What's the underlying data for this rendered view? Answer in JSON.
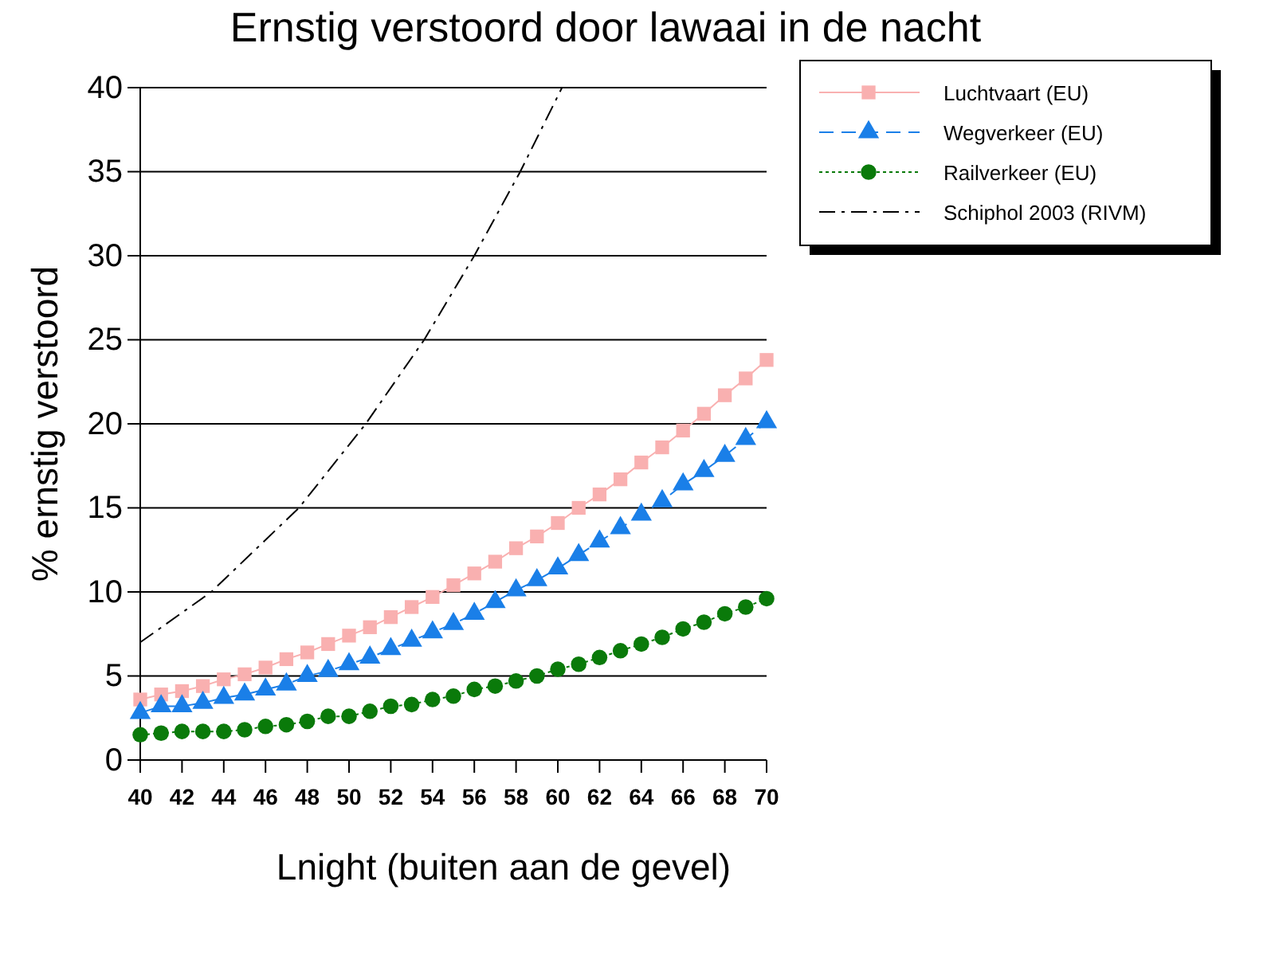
{
  "chart_data": {
    "type": "line",
    "title": "Ernstig verstoord door lawaai in de nacht",
    "xlabel": "Lnight (buiten aan de gevel)",
    "ylabel": "% ernstig verstoord",
    "x": [
      40,
      41,
      42,
      43,
      44,
      45,
      46,
      47,
      48,
      49,
      50,
      51,
      52,
      53,
      54,
      55,
      56,
      57,
      58,
      59,
      60,
      61,
      62,
      63,
      64,
      65,
      66,
      67,
      68,
      69,
      70
    ],
    "series": [
      {
        "name": "Luchtvaart (EU)",
        "color": "#f9b0b0",
        "marker": "square",
        "line_style": "solid",
        "values": [
          3.6,
          3.9,
          4.1,
          4.4,
          4.8,
          5.1,
          5.5,
          6.0,
          6.4,
          6.9,
          7.4,
          7.9,
          8.5,
          9.1,
          9.7,
          10.4,
          11.1,
          11.8,
          12.6,
          13.3,
          14.1,
          15.0,
          15.8,
          16.7,
          17.7,
          18.6,
          19.6,
          20.6,
          21.7,
          22.7,
          23.8
        ]
      },
      {
        "name": "Wegverkeer (EU)",
        "color": "#1a7fe8",
        "marker": "triangle",
        "line_style": "dashed",
        "values": [
          2.8,
          3.2,
          3.2,
          3.4,
          3.7,
          3.9,
          4.2,
          4.5,
          5.0,
          5.3,
          5.7,
          6.1,
          6.6,
          7.1,
          7.6,
          8.1,
          8.7,
          9.4,
          10.1,
          10.7,
          11.4,
          12.2,
          13.0,
          13.8,
          14.6,
          15.4,
          16.4,
          17.2,
          18.1,
          19.1,
          20.1
        ]
      },
      {
        "name": "Railverkeer (EU)",
        "color": "#0a7a0a",
        "marker": "circle",
        "line_style": "dotted",
        "values": [
          1.5,
          1.6,
          1.7,
          1.7,
          1.7,
          1.8,
          2.0,
          2.1,
          2.3,
          2.6,
          2.6,
          2.9,
          3.2,
          3.3,
          3.6,
          3.8,
          4.2,
          4.4,
          4.7,
          5.0,
          5.4,
          5.7,
          6.1,
          6.5,
          6.9,
          7.3,
          7.8,
          8.2,
          8.7,
          9.1,
          9.6
        ]
      },
      {
        "name": "Schiphol 2003 (RIVM)",
        "color": "#000000",
        "marker": "none",
        "line_style": "dashdot",
        "x": [
          40,
          43.4,
          47.6,
          50.8,
          53.6,
          56,
          58.2,
          60.2
        ],
        "values": [
          7,
          10,
          15,
          20,
          25,
          30,
          35,
          40
        ]
      }
    ],
    "xlim": [
      40,
      70
    ],
    "xticks": [
      40,
      42,
      44,
      46,
      48,
      50,
      52,
      54,
      56,
      58,
      60,
      62,
      64,
      66,
      68,
      70
    ],
    "ylim": [
      0,
      40
    ],
    "yticks": [
      0,
      5,
      10,
      15,
      20,
      25,
      30,
      35,
      40
    ],
    "grid": "y",
    "legend": "top right"
  }
}
